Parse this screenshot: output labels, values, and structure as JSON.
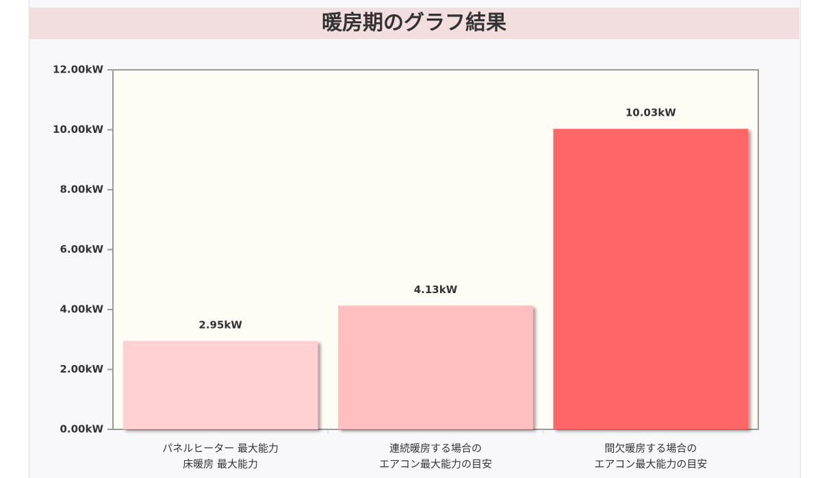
{
  "chart_data": {
    "type": "bar",
    "title": "暖房期のグラフ結果",
    "categories": [
      [
        "パネルヒーター 最大能力",
        "床暖房 最大能力"
      ],
      [
        "連続暖房する場合の",
        "エアコン最大能力の目安"
      ],
      [
        "間欠暖房する場合の",
        "エアコン最大能力の目安"
      ]
    ],
    "values": [
      2.95,
      4.13,
      10.03
    ],
    "value_labels": [
      "2.95kW",
      "4.13kW",
      "10.03kW"
    ],
    "colors": [
      "#ffd1d3",
      "#ffbfc1",
      "#ff6668"
    ],
    "ylim": [
      0,
      12
    ],
    "yticks": [
      {
        "value": 0,
        "label": "0.00kW"
      },
      {
        "value": 2,
        "label": "2.00kW"
      },
      {
        "value": 4,
        "label": "4.00kW"
      },
      {
        "value": 6,
        "label": "6.00kW"
      },
      {
        "value": 8,
        "label": "8.00kW"
      },
      {
        "value": 10,
        "label": "10.00kW"
      },
      {
        "value": 12,
        "label": "12.00kW"
      }
    ]
  }
}
